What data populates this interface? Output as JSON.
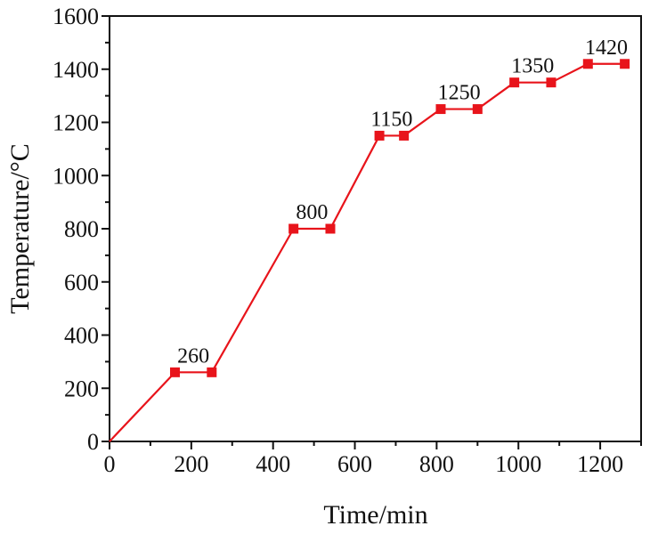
{
  "chart_data": {
    "type": "line",
    "title": "",
    "xlabel": "Time/min",
    "ylabel": "Temperature/°C",
    "xlim": [
      0,
      1300
    ],
    "ylim": [
      0,
      1600
    ],
    "x_ticks": [
      0,
      200,
      400,
      600,
      800,
      1000,
      1200
    ],
    "y_ticks": [
      0,
      200,
      400,
      600,
      800,
      1000,
      1200,
      1400,
      1600
    ],
    "grid": false,
    "legend": "none",
    "colors": {
      "line": "#e8141b",
      "marker": "#e8141b",
      "axis": "#111111"
    },
    "series": [
      {
        "x": [
          0,
          160,
          250,
          450,
          540,
          660,
          720,
          810,
          900,
          990,
          1080,
          1170,
          1260
        ],
        "y": [
          0,
          260,
          260,
          800,
          800,
          1150,
          1150,
          1250,
          1250,
          1350,
          1350,
          1420,
          1420
        ]
      }
    ],
    "annotations": [
      {
        "text": "260",
        "x": 205,
        "y": 260
      },
      {
        "text": "800",
        "x": 495,
        "y": 800
      },
      {
        "text": "1150",
        "x": 690,
        "y": 1150
      },
      {
        "text": "1250",
        "x": 855,
        "y": 1250
      },
      {
        "text": "1350",
        "x": 1035,
        "y": 1350
      },
      {
        "text": "1420",
        "x": 1215,
        "y": 1420
      }
    ]
  }
}
